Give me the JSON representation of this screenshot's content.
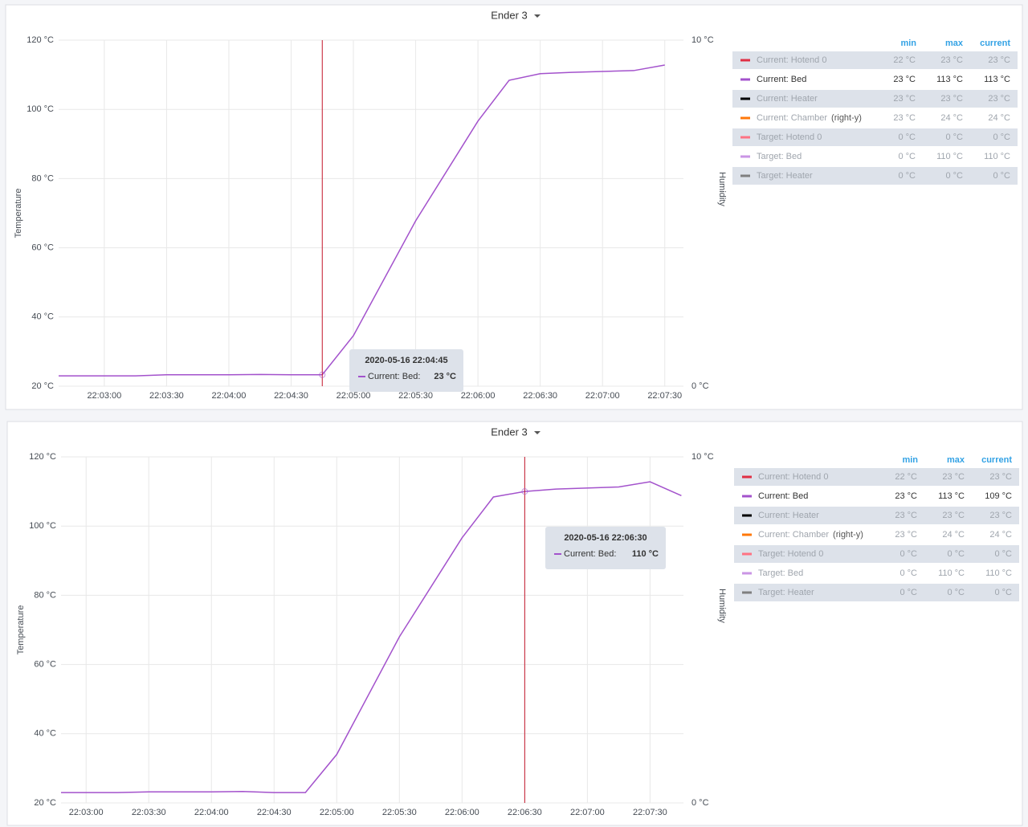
{
  "chart_data": [
    {
      "type": "line",
      "title": "Ender 3",
      "y_label": "Temperature",
      "y2_label": "Humidity",
      "x": [
        "22:02:38",
        "22:03:15",
        "22:03:30",
        "22:04:00",
        "22:04:15",
        "22:04:30",
        "22:04:45",
        "22:05:00",
        "22:05:30",
        "22:06:00",
        "22:06:15",
        "22:06:30",
        "22:06:45",
        "22:07:15",
        "22:07:30"
      ],
      "series": [
        {
          "name": "Current: Bed",
          "color": "#a352cc",
          "values": [
            23,
            23,
            23.3,
            23.3,
            23.4,
            23.3,
            23.3,
            34.6,
            67.8,
            96.6,
            108.4,
            110.3,
            110.7,
            111.2,
            112.8
          ]
        }
      ],
      "xlim": [
        "22:02:38",
        "22:07:39"
      ],
      "xticks": [
        "22:03:00",
        "22:03:30",
        "22:04:00",
        "22:04:30",
        "22:05:00",
        "22:05:30",
        "22:06:00",
        "22:06:30",
        "22:07:00",
        "22:07:30"
      ],
      "ylim": [
        20,
        120
      ],
      "yticks": [
        {
          "value": 20,
          "label": "20 °C"
        },
        {
          "value": 40,
          "label": "40 °C"
        },
        {
          "value": 60,
          "label": "60 °C"
        },
        {
          "value": 80,
          "label": "80 °C"
        },
        {
          "value": 100,
          "label": "100 °C"
        },
        {
          "value": 120,
          "label": "120 °C"
        }
      ],
      "y2lim": [
        0,
        10
      ],
      "y2ticks": [
        {
          "value": 0,
          "label": "0 °C"
        },
        {
          "value": 10,
          "label": "10 °C"
        }
      ],
      "grid": true,
      "legend": {
        "columns": [
          "min",
          "max",
          "current"
        ],
        "rows": [
          {
            "name": "Current: Hotend 0",
            "color": "#e02f44",
            "hidden": true,
            "min": "22 °C",
            "max": "23 °C",
            "current": "23 °C"
          },
          {
            "name": "Current: Bed",
            "color": "#a352cc",
            "hidden": false,
            "min": "23 °C",
            "max": "113 °C",
            "current": "113 °C"
          },
          {
            "name": "Current: Heater",
            "color": "#000000",
            "hidden": true,
            "min": "23 °C",
            "max": "23 °C",
            "current": "23 °C"
          },
          {
            "name": "Current: Chamber",
            "suffix": "(right-y)",
            "color": "#ff780a",
            "hidden": true,
            "min": "23 °C",
            "max": "24 °C",
            "current": "24 °C"
          },
          {
            "name": "Target: Hotend 0",
            "color": "#ff7383",
            "hidden": true,
            "min": "0 °C",
            "max": "0 °C",
            "current": "0 °C"
          },
          {
            "name": "Target: Bed",
            "color": "#ca95e5",
            "hidden": true,
            "min": "0 °C",
            "max": "110 °C",
            "current": "110 °C"
          },
          {
            "name": "Target: Heater",
            "color": "#7f7f7f",
            "hidden": true,
            "min": "0 °C",
            "max": "0 °C",
            "current": "0 °C"
          }
        ]
      },
      "tooltip": {
        "time": "2020-05-16 22:04:45",
        "series": "Current: Bed:",
        "value": "23 °C"
      }
    },
    {
      "type": "line",
      "title": "Ender 3",
      "y_label": "Temperature",
      "y2_label": "Humidity",
      "x": [
        "22:02:48",
        "22:03:15",
        "22:03:30",
        "22:04:00",
        "22:04:15",
        "22:04:30",
        "22:04:45",
        "22:05:00",
        "22:05:30",
        "22:06:00",
        "22:06:15",
        "22:06:30",
        "22:06:45",
        "22:07:15",
        "22:07:30",
        "22:07:45"
      ],
      "series": [
        {
          "name": "Current: Bed",
          "color": "#a352cc",
          "values": [
            23,
            23,
            23.2,
            23.2,
            23.3,
            23,
            23,
            34,
            68,
            96.6,
            108.4,
            110,
            110.7,
            111.3,
            112.8,
            108.8
          ]
        }
      ],
      "xlim": [
        "22:02:48",
        "22:07:46"
      ],
      "xticks": [
        "22:03:00",
        "22:03:30",
        "22:04:00",
        "22:04:30",
        "22:05:00",
        "22:05:30",
        "22:06:00",
        "22:06:30",
        "22:07:00",
        "22:07:30"
      ],
      "ylim": [
        20,
        120
      ],
      "yticks": [
        {
          "value": 20,
          "label": "20 °C"
        },
        {
          "value": 40,
          "label": "40 °C"
        },
        {
          "value": 60,
          "label": "60 °C"
        },
        {
          "value": 80,
          "label": "80 °C"
        },
        {
          "value": 100,
          "label": "100 °C"
        },
        {
          "value": 120,
          "label": "120 °C"
        }
      ],
      "y2lim": [
        0,
        10
      ],
      "y2ticks": [
        {
          "value": 0,
          "label": "0 °C"
        },
        {
          "value": 10,
          "label": "10 °C"
        }
      ],
      "grid": true,
      "legend": {
        "columns": [
          "min",
          "max",
          "current"
        ],
        "rows": [
          {
            "name": "Current: Hotend 0",
            "color": "#e02f44",
            "hidden": true,
            "min": "22 °C",
            "max": "23 °C",
            "current": "23 °C"
          },
          {
            "name": "Current: Bed",
            "color": "#a352cc",
            "hidden": false,
            "min": "23 °C",
            "max": "113 °C",
            "current": "109 °C"
          },
          {
            "name": "Current: Heater",
            "color": "#000000",
            "hidden": true,
            "min": "23 °C",
            "max": "23 °C",
            "current": "23 °C"
          },
          {
            "name": "Current: Chamber",
            "suffix": "(right-y)",
            "color": "#ff780a",
            "hidden": true,
            "min": "23 °C",
            "max": "24 °C",
            "current": "24 °C"
          },
          {
            "name": "Target: Hotend 0",
            "color": "#ff7383",
            "hidden": true,
            "min": "0 °C",
            "max": "0 °C",
            "current": "0 °C"
          },
          {
            "name": "Target: Bed",
            "color": "#ca95e5",
            "hidden": true,
            "min": "0 °C",
            "max": "110 °C",
            "current": "110 °C"
          },
          {
            "name": "Target: Heater",
            "color": "#7f7f7f",
            "hidden": true,
            "min": "0 °C",
            "max": "0 °C",
            "current": "0 °C"
          }
        ]
      },
      "tooltip": {
        "time": "2020-05-16 22:06:30",
        "series": "Current: Bed:",
        "value": "110 °C"
      }
    }
  ]
}
